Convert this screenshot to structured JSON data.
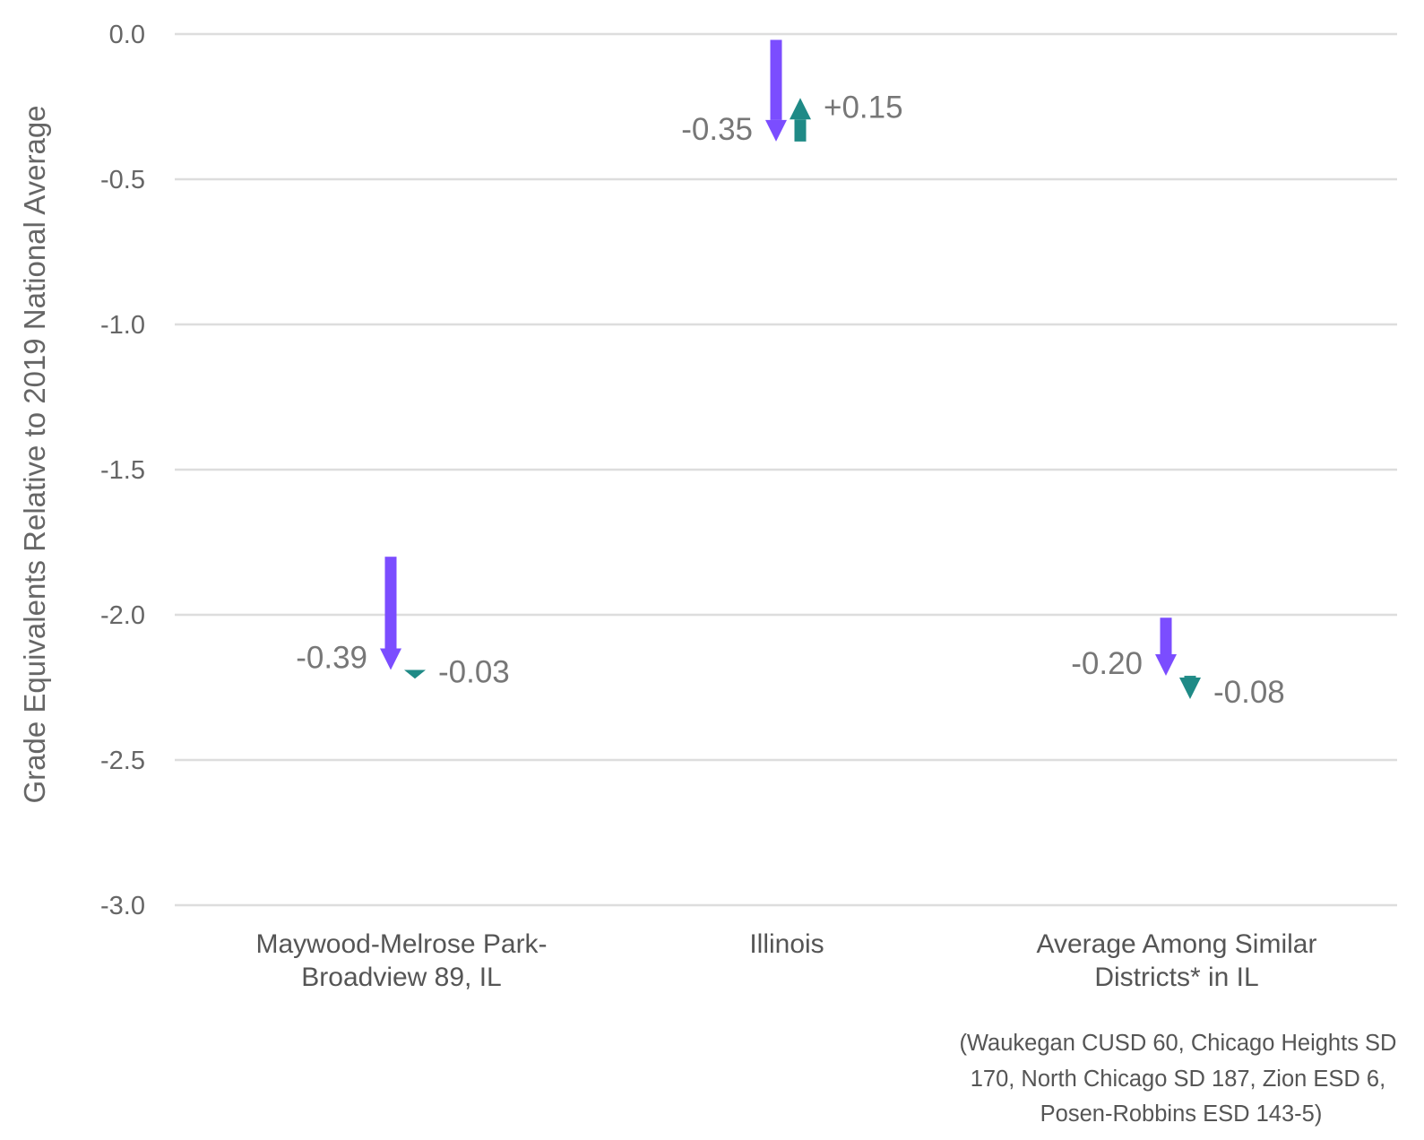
{
  "chart_data": {
    "type": "arrow",
    "title": "",
    "xlabel": "",
    "ylabel": "Grade Equivalents Relative to 2019 National Average",
    "ylim": [
      -3.0,
      0.0
    ],
    "yticks": [
      "0.0",
      "-0.5",
      "-1.0",
      "-1.5",
      "-2.0",
      "-2.5",
      "-3.0"
    ],
    "ytick_values": [
      0.0,
      -0.5,
      -1.0,
      -1.5,
      -2.0,
      -2.5,
      -3.0
    ],
    "grid": true,
    "colors": {
      "first_change": "#7b4dff",
      "second_change": "#1f8a86"
    },
    "categories": [
      {
        "label_lines": [
          "Maywood-Melrose Park-",
          "Broadview 89, IL"
        ],
        "start": -1.8,
        "changes": [
          {
            "delta": -0.39,
            "label": "-0.39"
          },
          {
            "delta": -0.03,
            "label": "-0.03"
          }
        ]
      },
      {
        "label_lines": [
          "Illinois"
        ],
        "start": -0.02,
        "changes": [
          {
            "delta": -0.35,
            "label": "-0.35"
          },
          {
            "delta": 0.15,
            "label": "+0.15"
          }
        ]
      },
      {
        "label_lines": [
          "Average Among Similar",
          "Districts* in IL"
        ],
        "start": -2.01,
        "changes": [
          {
            "delta": -0.2,
            "label": "-0.20"
          },
          {
            "delta": -0.08,
            "label": "-0.08"
          }
        ]
      }
    ],
    "note_lines": [
      "(Waukegan CUSD 60, Chicago Heights SD",
      "170, North Chicago SD 187, Zion ESD 6,",
      "Posen-Robbins ESD 143-5)"
    ]
  }
}
